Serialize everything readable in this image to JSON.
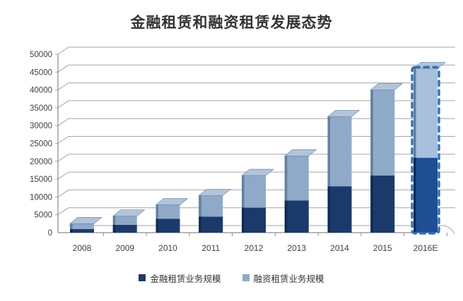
{
  "title": "金融租赁和融资租赁发展态势",
  "chart_data": {
    "type": "bar",
    "subtype": "stacked-column-3d",
    "title": "金融租赁和融资租赁发展态势",
    "categories": [
      "2008",
      "2009",
      "2010",
      "2011",
      "2012",
      "2013",
      "2014",
      "2015",
      "2016E"
    ],
    "series": [
      {
        "name": "金融租赁业务规模",
        "color": "#1B3A6B",
        "values": [
          1000,
          2200,
          3900,
          4500,
          7000,
          9000,
          13000,
          16000,
          21000
        ]
      },
      {
        "name": "融资租赁业务规模",
        "color": "#8FA9C9",
        "values": [
          1500,
          2400,
          3900,
          5900,
          9000,
          12500,
          19500,
          24000,
          25000
        ]
      }
    ],
    "totals": [
      2500,
      4600,
      7800,
      10400,
      16000,
      21500,
      32500,
      40000,
      46000
    ],
    "forecast_category": "2016E",
    "forecast_style": "dashed-outline",
    "xlabel": "",
    "ylabel": "",
    "ylim": [
      0,
      50000
    ],
    "ytick_step": 5000,
    "yticks": [
      0,
      5000,
      10000,
      15000,
      20000,
      25000,
      30000,
      35000,
      40000,
      45000,
      50000
    ],
    "grid": true,
    "legend_position": "bottom"
  },
  "colors": {
    "dark_front": "#1B3A6B",
    "dark_top": "#49648E",
    "dark_side": "#102A50",
    "light_front": "#8FA9C9",
    "light_top": "#B2C4DB",
    "light_side": "#64809F",
    "forecast_dark": "#1E4F94",
    "forecast_light": "#A9C0DC",
    "forecast_dash": "#2E74B5",
    "grid_line": "#A6A6A6",
    "axis_line": "#8C8C8C",
    "tick_label": "#3F3F3F",
    "legend_dark": "#1F3864",
    "legend_light": "#8EA9C9",
    "title_color": "#333333"
  }
}
